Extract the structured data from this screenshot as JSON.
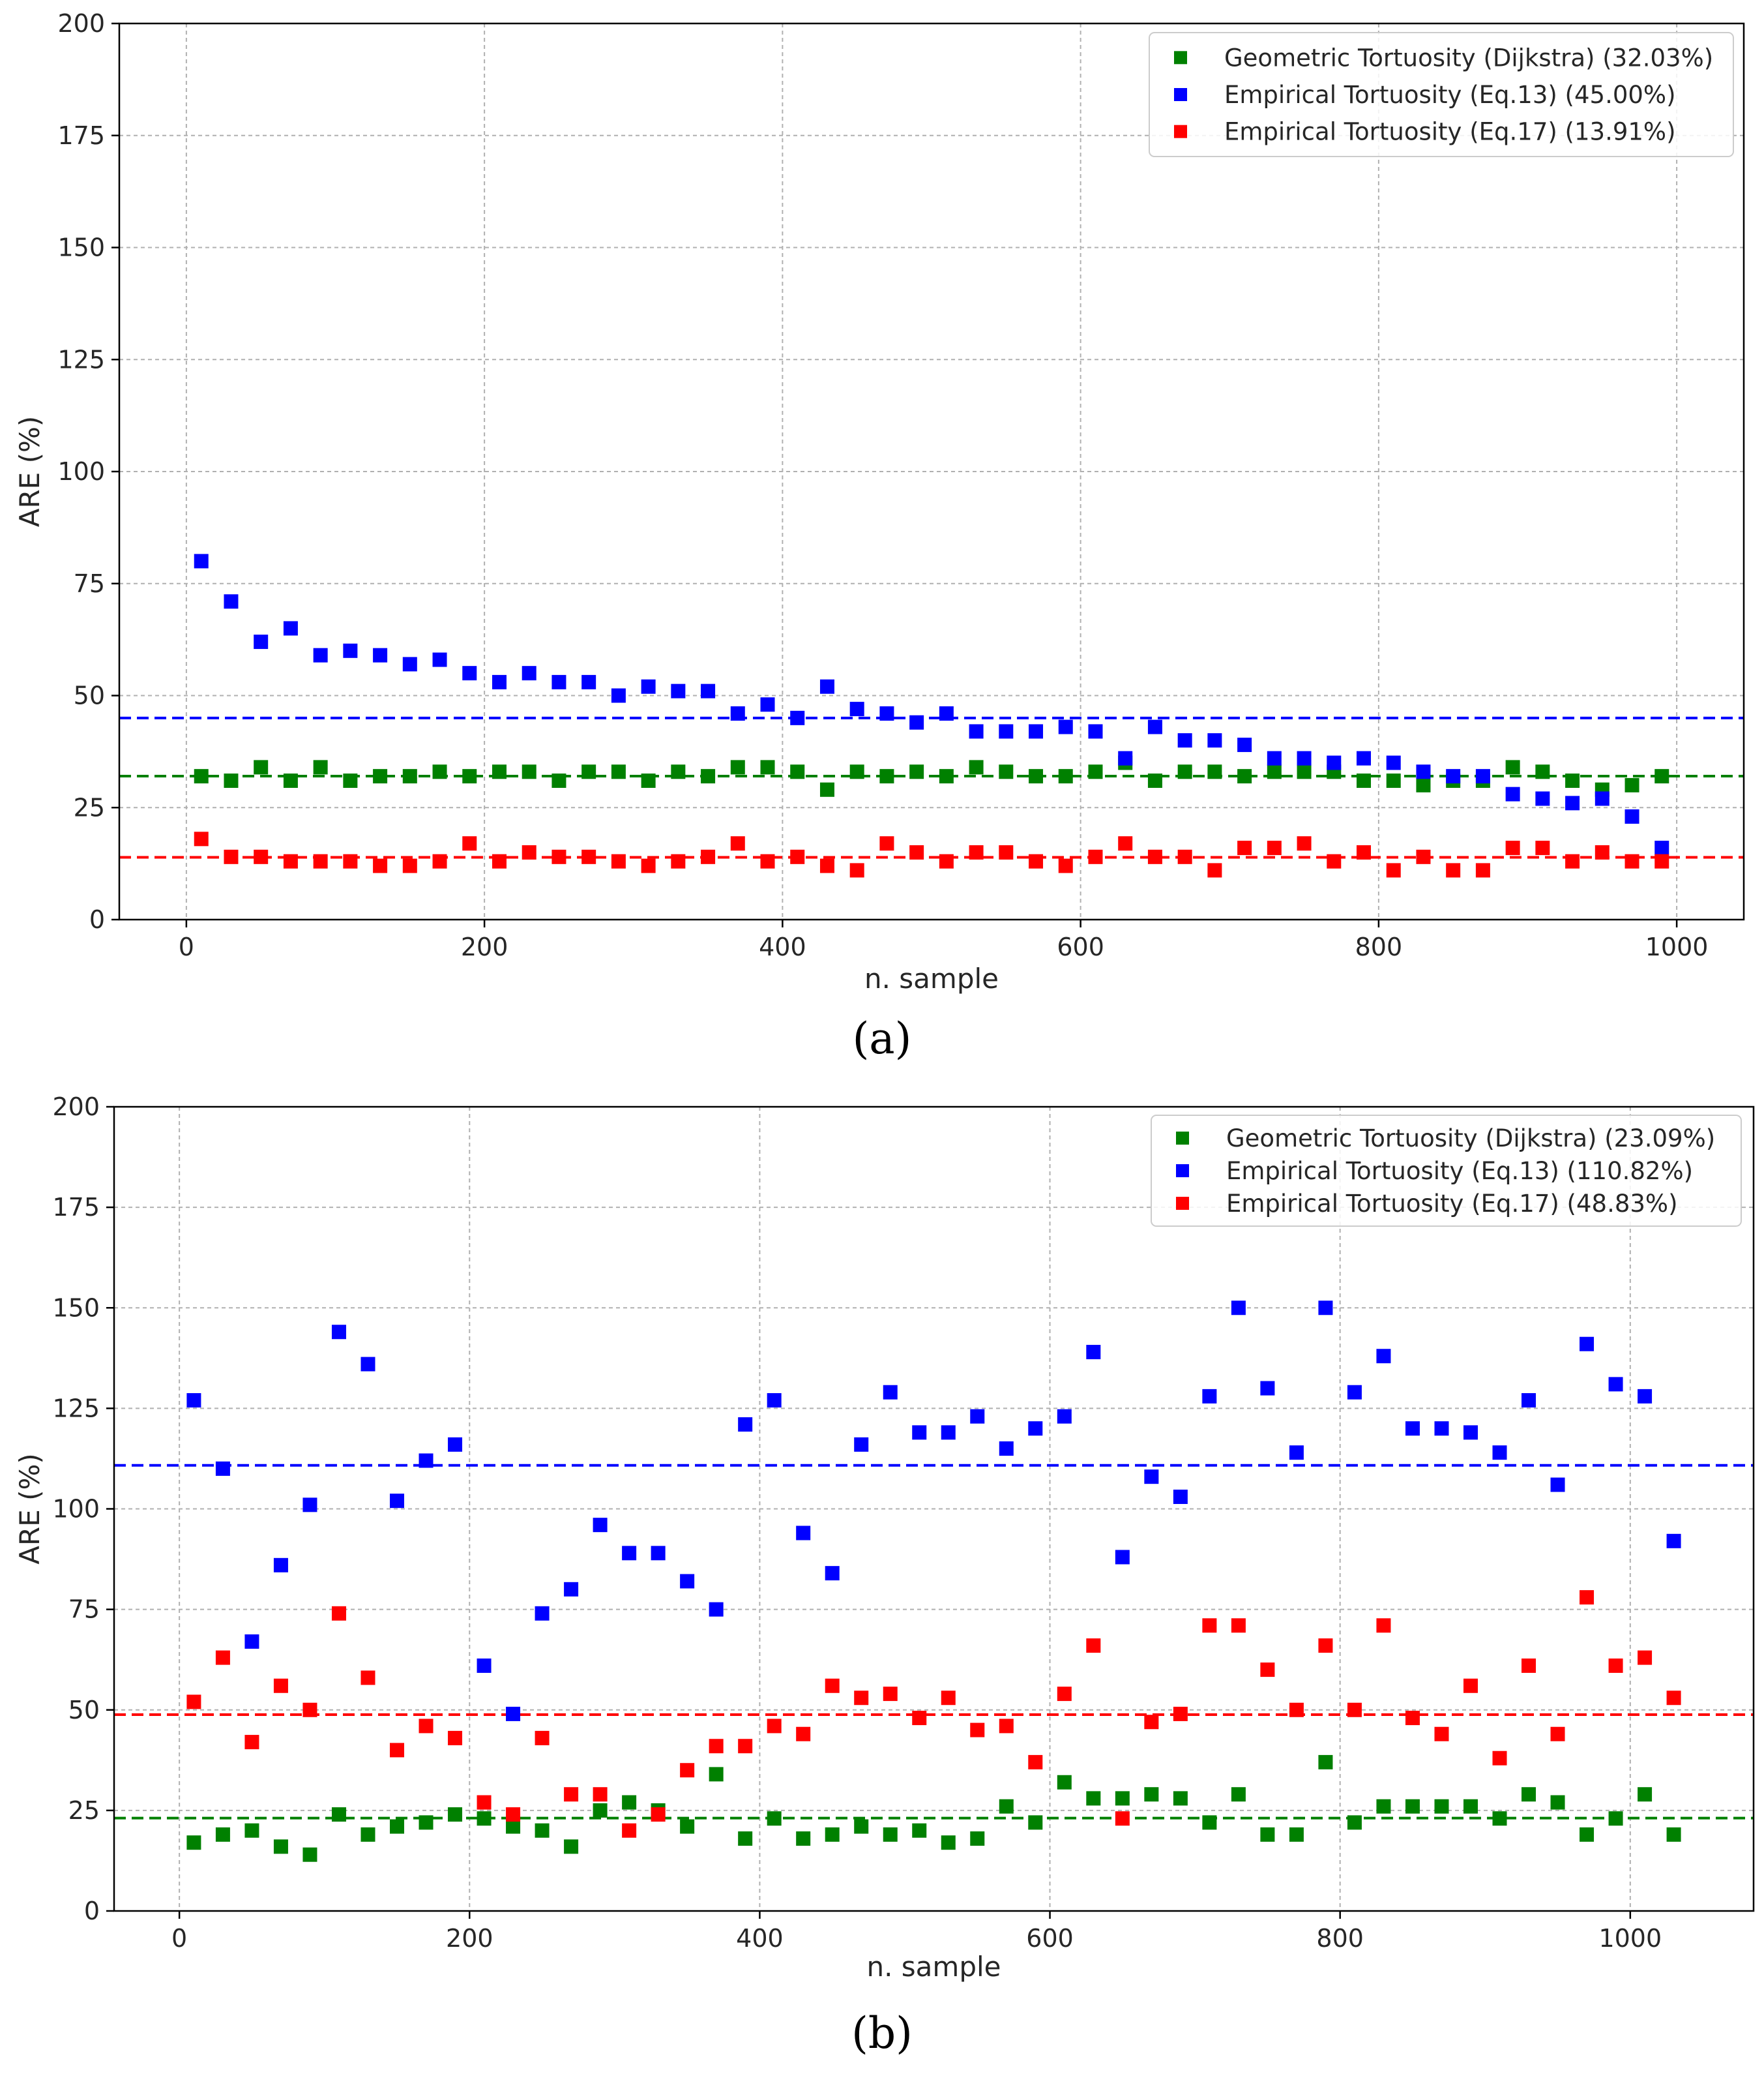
{
  "chart_data": [
    {
      "id": "a",
      "type": "scatter",
      "caption": "(a)",
      "xlabel": "n. sample",
      "ylabel": "ARE (%)",
      "xlim": [
        -45,
        1045
      ],
      "ylim": [
        0,
        200
      ],
      "xticks": [
        0,
        200,
        400,
        600,
        800,
        1000
      ],
      "yticks": [
        0,
        25,
        50,
        75,
        100,
        125,
        150,
        175,
        200
      ],
      "grid": true,
      "legend_position": "top-right",
      "x": [
        10,
        30,
        50,
        70,
        90,
        110,
        130,
        150,
        170,
        190,
        210,
        230,
        250,
        270,
        290,
        310,
        330,
        350,
        370,
        390,
        410,
        430,
        450,
        470,
        490,
        510,
        530,
        550,
        570,
        590,
        610,
        630,
        650,
        670,
        690,
        710,
        730,
        750,
        770,
        790,
        810,
        830,
        850,
        870,
        890,
        910,
        930,
        950,
        970,
        990
      ],
      "series": [
        {
          "name": "Geometric Tortuosity (Dijkstra) (32.03%)",
          "color": "#008000",
          "mean": 32.03,
          "values": [
            32,
            31,
            34,
            31,
            34,
            31,
            32,
            32,
            33,
            32,
            33,
            33,
            31,
            33,
            33,
            31,
            33,
            32,
            34,
            34,
            33,
            29,
            33,
            32,
            33,
            32,
            34,
            33,
            32,
            32,
            33,
            35,
            31,
            33,
            33,
            32,
            33,
            33,
            33,
            31,
            31,
            30,
            31,
            31,
            34,
            33,
            31,
            29,
            30,
            32
          ]
        },
        {
          "name": "Empirical Tortuosity (Eq.13) (45.00%)",
          "color": "#0000ff",
          "mean": 45.0,
          "values": [
            80,
            71,
            62,
            65,
            59,
            60,
            59,
            57,
            58,
            55,
            53,
            55,
            53,
            53,
            50,
            52,
            51,
            51,
            46,
            48,
            45,
            52,
            47,
            46,
            44,
            46,
            42,
            42,
            42,
            43,
            42,
            36,
            43,
            40,
            40,
            39,
            36,
            36,
            35,
            36,
            35,
            33,
            32,
            32,
            28,
            27,
            26,
            27,
            23,
            16
          ]
        },
        {
          "name": "Empirical Tortuosity (Eq.17) (13.91%)",
          "color": "#ff0000",
          "mean": 13.91,
          "values": [
            18,
            14,
            14,
            13,
            13,
            13,
            12,
            12,
            13,
            17,
            13,
            15,
            14,
            14,
            13,
            12,
            13,
            14,
            17,
            13,
            14,
            12,
            11,
            17,
            15,
            13,
            15,
            15,
            13,
            12,
            14,
            17,
            14,
            14,
            11,
            16,
            16,
            17,
            13,
            15,
            11,
            14,
            11,
            11,
            16,
            16,
            13,
            15,
            13,
            13
          ]
        }
      ]
    },
    {
      "id": "b",
      "type": "scatter",
      "caption": "(b)",
      "xlabel": "n. sample",
      "ylabel": "ARE (%)",
      "xlim": [
        -45,
        1085
      ],
      "ylim": [
        0,
        200
      ],
      "xticks": [
        0,
        200,
        400,
        600,
        800,
        1000
      ],
      "yticks": [
        0,
        25,
        50,
        75,
        100,
        125,
        150,
        175,
        200
      ],
      "grid": true,
      "legend_position": "top-right",
      "x": [
        10,
        30,
        50,
        70,
        90,
        110,
        130,
        150,
        170,
        190,
        210,
        230,
        250,
        270,
        290,
        310,
        330,
        350,
        370,
        390,
        410,
        430,
        450,
        470,
        490,
        510,
        530,
        550,
        570,
        590,
        610,
        630,
        650,
        670,
        690,
        710,
        730,
        750,
        770,
        790,
        810,
        830,
        850,
        870,
        890,
        910,
        930,
        950,
        970,
        990,
        1010,
        1030
      ],
      "series": [
        {
          "name": "Geometric Tortuosity (Dijkstra) (23.09%)",
          "color": "#008000",
          "mean": 23.09,
          "values": [
            17,
            19,
            20,
            16,
            14,
            24,
            19,
            21,
            22,
            24,
            23,
            21,
            20,
            16,
            25,
            27,
            25,
            21,
            34,
            18,
            23,
            18,
            19,
            21,
            19,
            20,
            17,
            18,
            26,
            22,
            32,
            28,
            28,
            29,
            28,
            22,
            29,
            19,
            19,
            37,
            22,
            26,
            26,
            26,
            26,
            23,
            29,
            27,
            19,
            23,
            29,
            19
          ]
        },
        {
          "name": "Empirical Tortuosity (Eq.13) (110.82%)",
          "color": "#0000ff",
          "mean": 110.82,
          "values": [
            127,
            110,
            67,
            86,
            101,
            144,
            136,
            102,
            112,
            116,
            61,
            49,
            74,
            80,
            96,
            89,
            89,
            82,
            75,
            121,
            127,
            94,
            84,
            116,
            129,
            119,
            119,
            123,
            115,
            120,
            123,
            139,
            88,
            108,
            103,
            128,
            150,
            130,
            114,
            150,
            129,
            138,
            120,
            120,
            119,
            114,
            127,
            106,
            141,
            131,
            128,
            92
          ]
        },
        {
          "name": "Empirical Tortuosity (Eq.17) (48.83%)",
          "color": "#ff0000",
          "mean": 48.83,
          "values": [
            52,
            63,
            42,
            56,
            50,
            74,
            58,
            40,
            46,
            43,
            27,
            24,
            43,
            29,
            29,
            20,
            24,
            35,
            41,
            41,
            46,
            44,
            56,
            53,
            54,
            48,
            53,
            45,
            46,
            37,
            54,
            66,
            23,
            47,
            49,
            71,
            71,
            60,
            50,
            66,
            50,
            71,
            48,
            44,
            56,
            38,
            61,
            44,
            78,
            61,
            63,
            53
          ]
        }
      ]
    }
  ]
}
